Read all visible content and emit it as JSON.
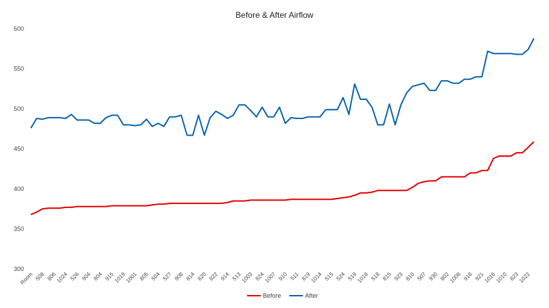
{
  "chart_data": {
    "type": "line",
    "title": "Before & After Airflow",
    "categories": [
      "Room",
      null,
      "508",
      null,
      "806",
      null,
      "1024",
      null,
      "526",
      null,
      "904",
      null,
      "804",
      null,
      "915",
      null,
      "1019",
      null,
      "1001",
      null,
      "805",
      null,
      "504",
      null,
      "527",
      null,
      "908",
      null,
      "814",
      null,
      "820",
      null,
      "822",
      null,
      "914",
      null,
      "513",
      null,
      "1003",
      null,
      "824",
      null,
      "1007",
      null,
      "910",
      null,
      "511",
      null,
      "819",
      null,
      "1014",
      null,
      "515",
      null,
      "524",
      null,
      "519",
      null,
      "1018",
      null,
      "518",
      null,
      "815",
      null,
      "923",
      null,
      "810",
      null,
      "507",
      null,
      "930",
      null,
      "802",
      null,
      "1008",
      null,
      "918",
      null,
      "921",
      null,
      "1016",
      null,
      "1010",
      null,
      "823",
      null,
      "1022",
      null
    ],
    "series": [
      {
        "name": "Before",
        "color": "#e30000",
        "values": [
          368,
          371,
          375,
          376,
          376,
          376,
          377,
          377,
          378,
          378,
          378,
          378,
          378,
          378,
          379,
          379,
          379,
          379,
          379,
          379,
          379,
          380,
          381,
          381,
          382,
          382,
          382,
          382,
          382,
          382,
          382,
          382,
          382,
          382,
          383,
          385,
          385,
          385,
          386,
          386,
          386,
          386,
          386,
          386,
          386,
          387,
          387,
          387,
          387,
          387,
          387,
          387,
          387,
          388,
          389,
          390,
          392,
          395,
          395,
          396,
          398,
          398,
          398,
          398,
          398,
          398,
          402,
          407,
          409,
          410,
          410,
          415,
          415,
          415,
          415,
          415,
          420,
          420,
          423,
          423,
          438,
          441,
          441,
          441,
          445,
          445,
          452,
          459
        ]
      },
      {
        "name": "After",
        "color": "#0a64b0",
        "values": [
          476,
          488,
          487,
          489,
          489,
          489,
          488,
          493,
          486,
          486,
          486,
          482,
          482,
          489,
          492,
          492,
          480,
          480,
          479,
          480,
          487,
          478,
          482,
          478,
          490,
          490,
          492,
          467,
          467,
          492,
          467,
          489,
          497,
          493,
          488,
          492,
          505,
          505,
          498,
          490,
          502,
          490,
          490,
          502,
          482,
          489,
          488,
          488,
          490,
          490,
          490,
          499,
          499,
          499,
          514,
          493,
          531,
          512,
          512,
          502,
          480,
          480,
          506,
          480,
          505,
          520,
          528,
          530,
          532,
          523,
          523,
          535,
          535,
          532,
          532,
          537,
          537,
          540,
          540,
          572,
          569,
          569,
          569,
          569,
          568,
          568,
          574,
          588
        ]
      }
    ],
    "ylim": [
      300,
      600
    ],
    "yticks": [
      300,
      350,
      400,
      450,
      500,
      550,
      600
    ],
    "grid": false,
    "legend": "bottom"
  }
}
